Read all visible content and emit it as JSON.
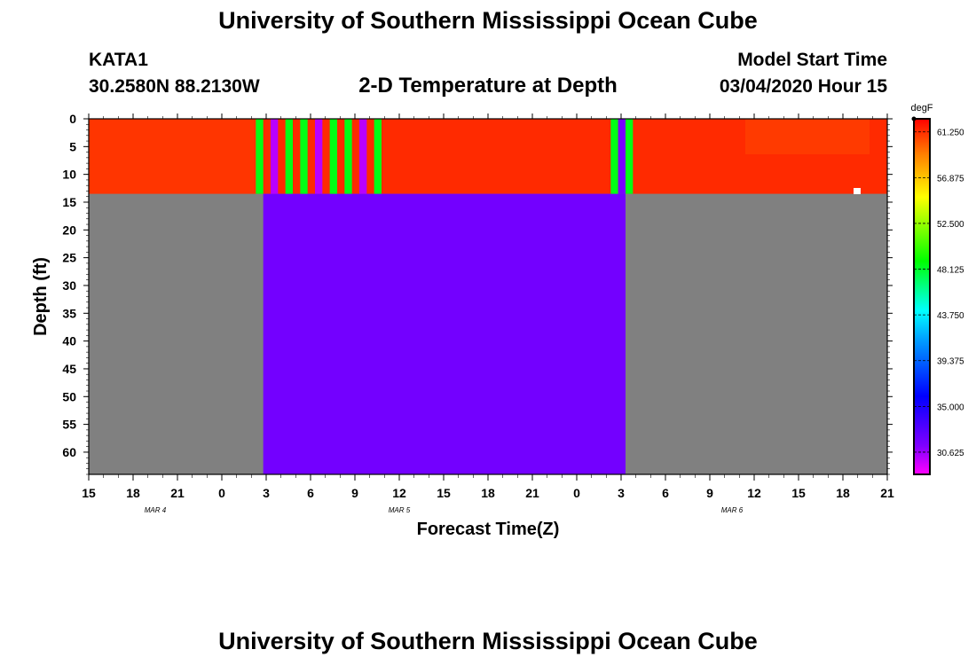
{
  "header": {
    "title": "University of Southern Mississippi Ocean Cube",
    "station": "KATA1",
    "coords": "30.2580N 88.2130W",
    "plot_title": "2-D Temperature at Depth",
    "model_label": "Model Start Time",
    "model_time": "03/04/2020 Hour 15"
  },
  "footer": {
    "title": "University of Southern Mississippi Ocean Cube"
  },
  "colors": {
    "no_data": "#808080",
    "surface_warm": "#ff2a00",
    "low_temp_fill": "#7300ff",
    "bar_green": "#22ee11",
    "bar_magenta": "#dd11ff"
  },
  "chart_data": {
    "type": "heatmap",
    "title": "2-D Temperature at Depth",
    "xlabel": "Forecast Time(Z)",
    "ylabel": "Depth (ft)",
    "x_tick_labels": [
      "15",
      "18",
      "21",
      "0",
      "3",
      "6",
      "9",
      "12",
      "15",
      "18",
      "21",
      "0",
      "3",
      "6",
      "9",
      "12",
      "15",
      "18",
      "21"
    ],
    "date_labels": [
      "MAR 4",
      "MAR 5",
      "MAR 6"
    ],
    "y_tick_labels": [
      "0",
      "5",
      "10",
      "15",
      "20",
      "25",
      "30",
      "35",
      "40",
      "45",
      "50",
      "55",
      "60"
    ],
    "ylim": [
      0,
      64
    ],
    "colorbar": {
      "unit": "degF",
      "labels": [
        "61.250",
        "56.875",
        "52.500",
        "48.125",
        "43.750",
        "39.375",
        "35.000",
        "30.625"
      ],
      "min": 28.5,
      "max": 62.5
    },
    "surface_layer": {
      "depth_ft": [
        0,
        13.5
      ],
      "temp_degF": 61.5,
      "start_hours": 0,
      "end_hours": 54
    },
    "deep_layer": {
      "depth_ft": [
        13.5,
        64
      ],
      "temp_degF": 31.5,
      "start_hours": 11.8,
      "end_hours": 36.3
    },
    "anomaly_bars": [
      {
        "start_hours": 11.3,
        "end_hours": 11.8,
        "temp_degF": 48.5
      },
      {
        "start_hours": 12.3,
        "end_hours": 12.8,
        "temp_degF": 30.0
      },
      {
        "start_hours": 13.3,
        "end_hours": 13.8,
        "temp_degF": 48.5
      },
      {
        "start_hours": 14.3,
        "end_hours": 14.8,
        "temp_degF": 48.5
      },
      {
        "start_hours": 15.3,
        "end_hours": 15.8,
        "temp_degF": 30.0
      },
      {
        "start_hours": 16.3,
        "end_hours": 16.8,
        "temp_degF": 48.5
      },
      {
        "start_hours": 17.3,
        "end_hours": 17.8,
        "temp_degF": 48.5
      },
      {
        "start_hours": 18.3,
        "end_hours": 18.8,
        "temp_degF": 30.0
      },
      {
        "start_hours": 19.3,
        "end_hours": 19.8,
        "temp_degF": 48.5
      },
      {
        "start_hours": 35.3,
        "end_hours": 35.8,
        "temp_degF": 48.5
      },
      {
        "start_hours": 35.8,
        "end_hours": 36.3,
        "temp_degF": 31.5
      },
      {
        "start_hours": 36.3,
        "end_hours": 36.8,
        "temp_degF": 48.5
      }
    ]
  }
}
